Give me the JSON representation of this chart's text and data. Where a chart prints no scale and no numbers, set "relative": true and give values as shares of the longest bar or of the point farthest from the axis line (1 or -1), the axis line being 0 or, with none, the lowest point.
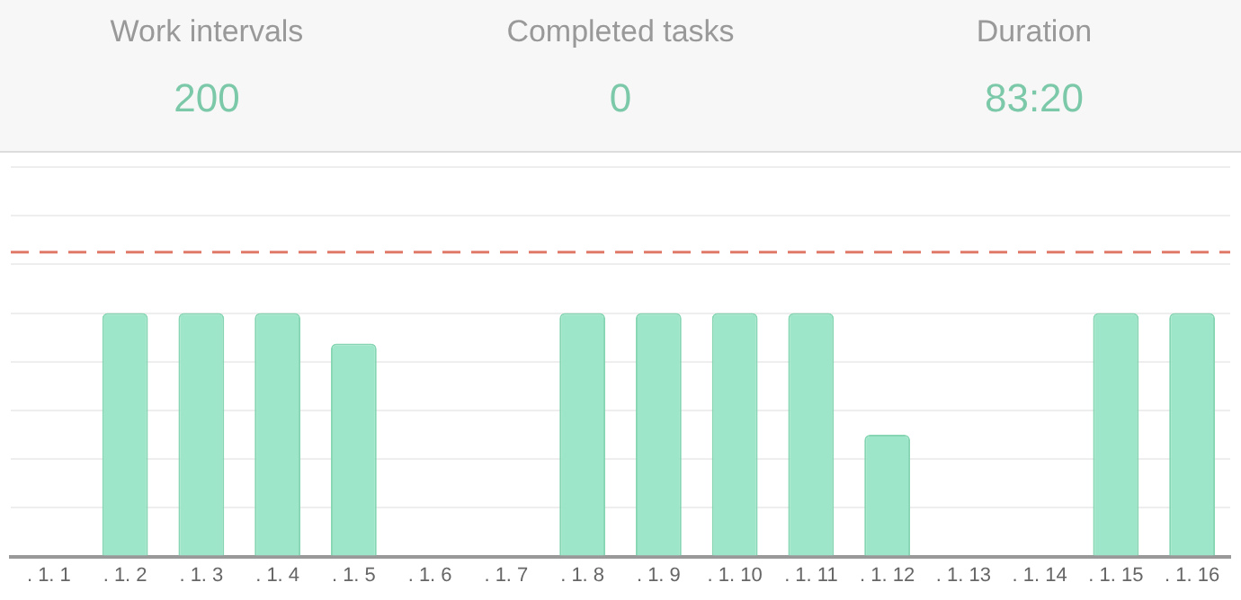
{
  "chart_data": [
    {
      "type": "other",
      "annotations": [
        "Work intervals",
        "200",
        "Completed tasks",
        "0",
        "Duration",
        "83:20"
      ]
    },
    {
      "type": "bar",
      "relative": true,
      "categories": [
        ". 1. 1",
        ". 1. 2",
        ". 1. 3",
        ". 1. 4",
        ". 1. 5",
        ". 1. 6",
        ". 1. 7",
        ". 1. 8",
        ". 1. 9",
        ". 1. 10",
        ". 1. 11",
        ". 1. 12",
        ". 1. 13",
        ". 1. 14",
        ". 1. 15",
        ". 1. 16"
      ],
      "values": [
        0,
        1,
        1,
        1,
        0.875,
        0,
        0,
        1,
        1,
        1,
        1,
        0.5,
        0,
        0,
        1,
        1
      ],
      "color": "#9ee6c9",
      "ref_lines": [
        {
          "axis": "y",
          "value": 1.25,
          "color": "#e07a68",
          "line_style": "dashed"
        }
      ],
      "grid": "y",
      "legend": false
    }
  ]
}
